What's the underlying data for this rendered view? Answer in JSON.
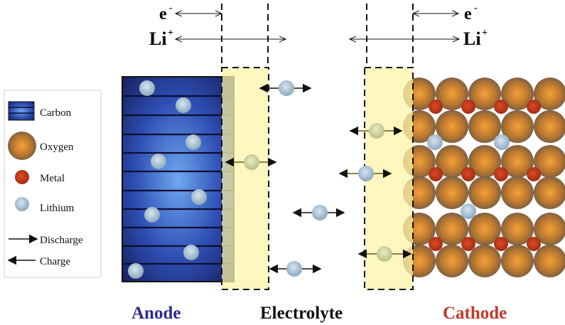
{
  "top_labels": {
    "electron": "e",
    "electron_sup": "-",
    "lithium_ion": "Li",
    "lithium_ion_sup": "+"
  },
  "legend": {
    "carbon": "Carbon",
    "oxygen": "Oxygen",
    "metal": "Metal",
    "lithium": "Lithium",
    "discharge": "Discharge",
    "charge": "Charge"
  },
  "regions": {
    "anode": "Anode",
    "electrolyte": "Electrolyte",
    "cathode": "Cathode"
  },
  "colors": {
    "anode_text": "#2b2b8f",
    "cathode_text": "#c0392b",
    "electrolyte_text": "#111111",
    "sei_fill": "#fff7b0",
    "oxygen": "#e08a2a",
    "metal": "#c83a1c",
    "lithium": "#a9c3d6",
    "carbon": "#2f4fb5"
  }
}
